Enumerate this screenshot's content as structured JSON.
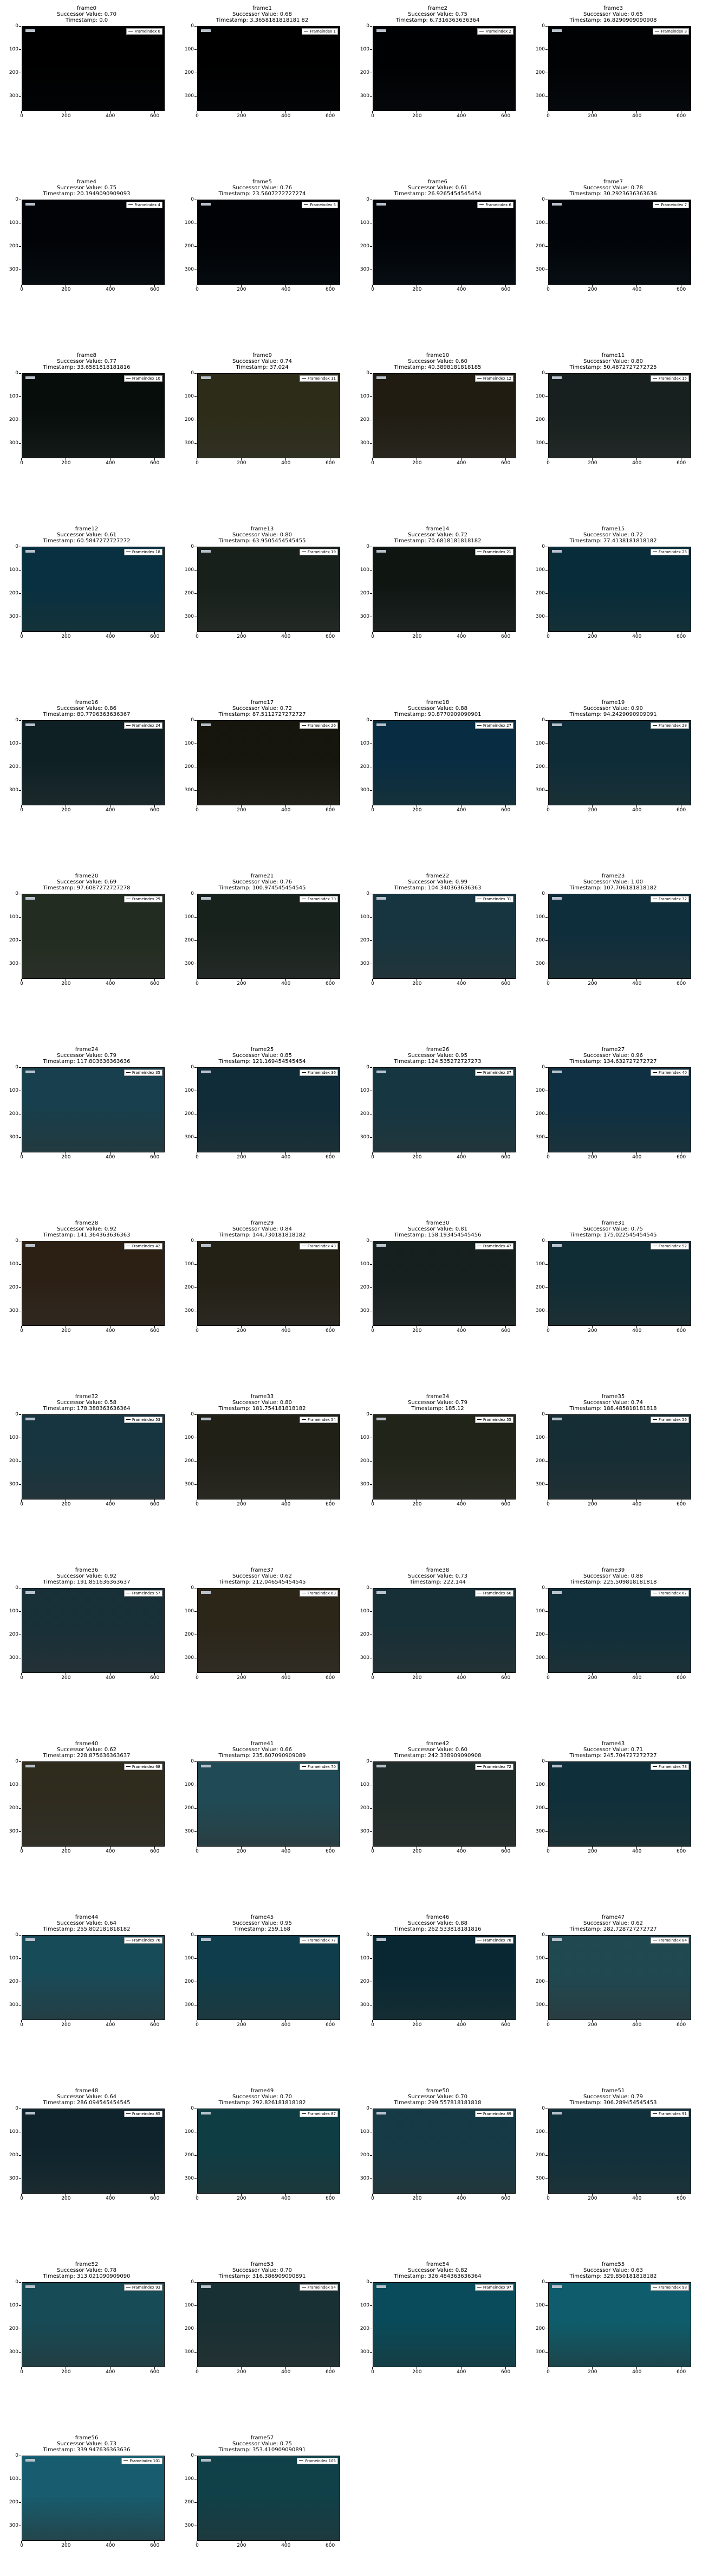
{
  "figure": {
    "axes": {
      "y_ticks": [
        "0",
        "100",
        "200",
        "300"
      ],
      "x_ticks": [
        "0",
        "200",
        "400",
        "600"
      ]
    },
    "frames": [
      {
        "title": "frame0",
        "successor": "Successor Value: 0.70",
        "timestamp": "Timestamp: 0.0",
        "legend": "Frameindex 0",
        "color": "#05080c"
      },
      {
        "title": "frame1",
        "successor": "Successor Value: 0.68",
        "timestamp": "Timestamp: 3.3658181818181 82",
        "legend": "Frameindex 1",
        "color": "#06090d"
      },
      {
        "title": "frame2",
        "successor": "Successor Value: 0.75",
        "timestamp": "Timestamp: 6.7316363636364",
        "legend": "Frameindex 2",
        "color": "#0a0f16"
      },
      {
        "title": "frame3",
        "successor": "Successor Value: 0.65",
        "timestamp": "Timestamp: 16.8290909090908",
        "legend": "Frameindex 3",
        "color": "#0c141c"
      },
      {
        "title": "frame4",
        "successor": "Successor Value: 0.75",
        "timestamp": "Timestamp: 20.1949090909093",
        "legend": "Frameindex 4",
        "color": "#0f1b26"
      },
      {
        "title": "frame5",
        "successor": "Successor Value: 0.76",
        "timestamp": "Timestamp: 23.5607272727274",
        "legend": "Frameindex 5",
        "color": "#0c1822"
      },
      {
        "title": "frame6",
        "successor": "Successor Value: 0.61",
        "timestamp": "Timestamp: 26.9265454545454",
        "legend": "Frameindex 6",
        "color": "#0f1d2a"
      },
      {
        "title": "frame7",
        "successor": "Successor Value: 0.78",
        "timestamp": "Timestamp: 30.2923636363636",
        "legend": "Frameindex 7",
        "color": "#11202c"
      },
      {
        "title": "frame8",
        "successor": "Successor Value: 0.77",
        "timestamp": "Timestamp: 33.6581818181816",
        "legend": "Frameindex 10",
        "color": "#2b3a34"
      },
      {
        "title": "frame9",
        "successor": "Successor Value: 0.74",
        "timestamp": "Timestamp: 37.024",
        "legend": "Frameindex 11",
        "color": "#6b6a4e"
      },
      {
        "title": "frame10",
        "successor": "Successor Value: 0.60",
        "timestamp": "Timestamp: 40.3898181818185",
        "legend": "Frameindex 12",
        "color": "#5a5444"
      },
      {
        "title": "frame11",
        "successor": "Successor Value: 0.80",
        "timestamp": "Timestamp: 50.4872727272725",
        "legend": "Frameindex 15",
        "color": "#4c5a57"
      },
      {
        "title": "frame12",
        "successor": "Successor Value: 0.61",
        "timestamp": "Timestamp: 60.5847272727272",
        "legend": "Frameindex 18",
        "color": "#2d6f80"
      },
      {
        "title": "frame13",
        "successor": "Successor Value: 0.80",
        "timestamp": "Timestamp: 63.9505454545455",
        "legend": "Frameindex 19",
        "color": "#4d5a52"
      },
      {
        "title": "frame14",
        "successor": "Successor Value: 0.72",
        "timestamp": "Timestamp: 70.6818181818182",
        "legend": "Frameindex 21",
        "color": "#3d4a44"
      },
      {
        "title": "frame15",
        "successor": "Successor Value: 0.72",
        "timestamp": "Timestamp: 77.4138181818182",
        "legend": "Frameindex 23",
        "color": "#2c6a7a"
      },
      {
        "title": "frame16",
        "successor": "Successor Value: 0.86",
        "timestamp": "Timestamp: 80.7796363636367",
        "legend": "Frameindex 24",
        "color": "#3b5a60"
      },
      {
        "title": "frame17",
        "successor": "Successor Value: 0.72",
        "timestamp": "Timestamp: 87.5112727272727",
        "legend": "Frameindex 26",
        "color": "#4a4a3a"
      },
      {
        "title": "frame18",
        "successor": "Successor Value: 0.88",
        "timestamp": "Timestamp: 90.8770909090901",
        "legend": "Frameindex 27",
        "color": "#2d6b82"
      },
      {
        "title": "frame19",
        "successor": "Successor Value: 0.90",
        "timestamp": "Timestamp: 94.2429090909091",
        "legend": "Frameindex 28",
        "color": "#3a6a78"
      },
      {
        "title": "frame20",
        "successor": "Successor Value: 0.69",
        "timestamp": "Timestamp: 97.6087272727278",
        "legend": "Frameindex 29",
        "color": "#5d6a5a"
      },
      {
        "title": "frame21",
        "successor": "Successor Value: 0.76",
        "timestamp": "Timestamp: 100.974545454545",
        "legend": "Frameindex 30",
        "color": "#4f5d56"
      },
      {
        "title": "frame22",
        "successor": "Successor Value: 0.99",
        "timestamp": "Timestamp: 104.340363636363",
        "legend": "Frameindex 31",
        "color": "#4b7480"
      },
      {
        "title": "frame23",
        "successor": "Successor Value: 1.00",
        "timestamp": "Timestamp: 107.706181818182",
        "legend": "Frameindex 32",
        "color": "#3d6c7c"
      },
      {
        "title": "frame24",
        "successor": "Successor Value: 0.79",
        "timestamp": "Timestamp: 117.803636363636",
        "legend": "Frameindex 35",
        "color": "#4d7f8c"
      },
      {
        "title": "frame25",
        "successor": "Successor Value: 0.85",
        "timestamp": "Timestamp: 121.169454545454",
        "legend": "Frameindex 36",
        "color": "#3e6a78"
      },
      {
        "title": "frame26",
        "successor": "Successor Value: 0.95",
        "timestamp": "Timestamp: 124.535272727273",
        "legend": "Frameindex 37",
        "color": "#4a7682"
      },
      {
        "title": "frame27",
        "successor": "Successor Value: 0.96",
        "timestamp": "Timestamp: 134.632727272727",
        "legend": "Frameindex 40",
        "color": "#3b6f82"
      },
      {
        "title": "frame28",
        "successor": "Successor Value: 0.92",
        "timestamp": "Timestamp: 141.364363636363",
        "legend": "Frameindex 42",
        "color": "#6a5a48"
      },
      {
        "title": "frame29",
        "successor": "Successor Value: 0.84",
        "timestamp": "Timestamp: 144.730181818182",
        "legend": "Frameindex 43",
        "color": "#5f5a4a"
      },
      {
        "title": "frame30",
        "successor": "Successor Value: 0.81",
        "timestamp": "Timestamp: 158.193454545456",
        "legend": "Frameindex 47",
        "color": "#4a5a58"
      },
      {
        "title": "frame31",
        "successor": "Successor Value: 0.75",
        "timestamp": "Timestamp: 175.022545454545",
        "legend": "Frameindex 52",
        "color": "#3f6a74"
      },
      {
        "title": "frame32",
        "successor": "Successor Value: 0.58",
        "timestamp": "Timestamp: 178.388363636364",
        "legend": "Frameindex 53",
        "color": "#4c7480"
      },
      {
        "title": "frame33",
        "successor": "Successor Value: 0.80",
        "timestamp": "Timestamp: 181.754181818182",
        "legend": "Frameindex 54",
        "color": "#5a5a4c"
      },
      {
        "title": "frame34",
        "successor": "Successor Value: 0.79",
        "timestamp": "Timestamp: 185.12",
        "legend": "Frameindex 55",
        "color": "#5c604e"
      },
      {
        "title": "frame35",
        "successor": "Successor Value: 0.74",
        "timestamp": "Timestamp: 188.485818181818",
        "legend": "Frameindex 56",
        "color": "#4a6b74"
      },
      {
        "title": "frame36",
        "successor": "Successor Value: 0.92",
        "timestamp": "Timestamp: 191.851636363637",
        "legend": "Frameindex 57",
        "color": "#4f6e78"
      },
      {
        "title": "frame37",
        "successor": "Successor Value: 0.62",
        "timestamp": "Timestamp: 212.046545454545",
        "legend": "Frameindex 63",
        "color": "#6a6250"
      },
      {
        "title": "frame38",
        "successor": "Successor Value: 0.73",
        "timestamp": "Timestamp: 222.144",
        "legend": "Frameindex 66",
        "color": "#4d6e76"
      },
      {
        "title": "frame39",
        "successor": "Successor Value: 0.88",
        "timestamp": "Timestamp: 225.509818181818",
        "legend": "Frameindex 67",
        "color": "#3f6d7a"
      },
      {
        "title": "frame40",
        "successor": "Successor Value: 0.62",
        "timestamp": "Timestamp: 228.875636363637",
        "legend": "Frameindex 68",
        "color": "#6d6a58"
      },
      {
        "title": "frame41",
        "successor": "Successor Value: 0.66",
        "timestamp": "Timestamp: 235.607090909089",
        "legend": "Frameindex 70",
        "color": "#5b8a94"
      },
      {
        "title": "frame42",
        "successor": "Successor Value: 0.60",
        "timestamp": "Timestamp: 242.338909090908",
        "legend": "Frameindex 72",
        "color": "#5a6a66"
      },
      {
        "title": "frame43",
        "successor": "Successor Value: 0.71",
        "timestamp": "Timestamp: 245.704727272727",
        "legend": "Frameindex 73",
        "color": "#3d6e7a"
      },
      {
        "title": "frame44",
        "successor": "Successor Value: 0.64",
        "timestamp": "Timestamp: 255.802181818182",
        "legend": "Frameindex 76",
        "color": "#4f8a96"
      },
      {
        "title": "frame45",
        "successor": "Successor Value: 0.95",
        "timestamp": "Timestamp: 259.168",
        "legend": "Frameindex 77",
        "color": "#3f7d8a"
      },
      {
        "title": "frame46",
        "successor": "Successor Value: 0.88",
        "timestamp": "Timestamp: 262.533818181816",
        "legend": "Frameindex 78",
        "color": "#2f6472"
      },
      {
        "title": "frame47",
        "successor": "Successor Value: 0.62",
        "timestamp": "Timestamp: 282.728727272727",
        "legend": "Frameindex 84",
        "color": "#5a8890"
      },
      {
        "title": "frame48",
        "successor": "Successor Value: 0.64",
        "timestamp": "Timestamp: 286.094545454545",
        "legend": "Frameindex 85",
        "color": "#3c5f6a"
      },
      {
        "title": "frame49",
        "successor": "Successor Value: 0.70",
        "timestamp": "Timestamp: 292.826181818182",
        "legend": "Frameindex 87",
        "color": "#3c7d84"
      },
      {
        "title": "frame50",
        "successor": "Successor Value: 0.70",
        "timestamp": "Timestamp: 299.557818181818",
        "legend": "Frameindex 89",
        "color": "#4a7a86"
      },
      {
        "title": "frame51",
        "successor": "Successor Value: 0.79",
        "timestamp": "Timestamp: 306.289454545453",
        "legend": "Frameindex 91",
        "color": "#3f6f7c"
      },
      {
        "title": "frame52",
        "successor": "Successor Value: 0.78",
        "timestamp": "Timestamp: 313.021090909090",
        "legend": "Frameindex 93",
        "color": "#4c8a94"
      },
      {
        "title": "frame53",
        "successor": "Successor Value: 0.70",
        "timestamp": "Timestamp: 316.386909090891",
        "legend": "Frameindex 94",
        "color": "#4f6e72"
      },
      {
        "title": "frame54",
        "successor": "Successor Value: 0.82",
        "timestamp": "Timestamp: 326.484363636364",
        "legend": "Frameindex 97",
        "color": "#2f8a98"
      },
      {
        "title": "frame55",
        "successor": "Successor Value: 0.63",
        "timestamp": "Timestamp: 329.850181818182",
        "legend": "Frameindex 98",
        "color": "#3d9aa6"
      },
      {
        "title": "frame56",
        "successor": "Successor Value: 0.73",
        "timestamp": "Timestamp: 339.947636363636",
        "legend": "Frameindex 101",
        "color": "#4d9aa8"
      },
      {
        "title": "frame57",
        "successor": "Successor Value: 0.75",
        "timestamp": "Timestamp: 353.410909090891",
        "legend": "Frameindex 105",
        "color": "#3f8088"
      }
    ]
  }
}
